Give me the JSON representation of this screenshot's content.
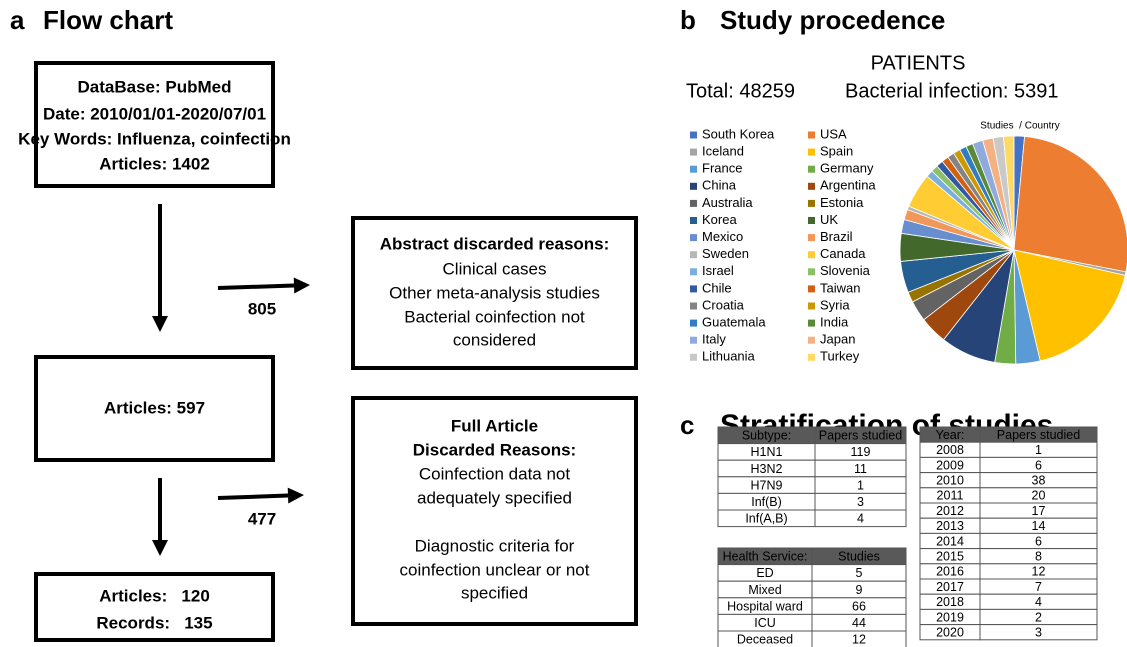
{
  "panels": [
    {
      "letter": "a",
      "title": "Flow chart"
    },
    {
      "letter": "b",
      "title": "Study procedence"
    },
    {
      "letter": "c",
      "title": "Stratification of studies"
    }
  ],
  "flow": {
    "boxes": [
      {
        "lines": [
          "DataBase: PubMed",
          "Date: 2010/01/01-2020/07/01",
          "Key Words: Influenza, coinfection",
          "Articles: 1402"
        ]
      },
      {
        "lines": [
          "Abstract discarded reasons:",
          "Clinical cases",
          "Other meta-analysis studies",
          "Bacterial coinfection not",
          "considered"
        ]
      },
      {
        "lines": [
          "Articles: 597"
        ]
      },
      {
        "lines": [
          "Full Article",
          "Discarded Reasons:",
          "Coinfection data not",
          "adequately specified",
          "Diagnostic criteria for",
          "coinfection unclear or not",
          "specified"
        ]
      },
      {
        "lines": [
          "Articles:   120",
          "Records:   135"
        ]
      }
    ],
    "excluded": [
      805,
      477
    ]
  },
  "patients": {
    "heading": "PATIENTS",
    "total": "Total: 48259",
    "bacterial": "Bacterial infection: 5391"
  },
  "pie": {
    "title": "Studies  / Country",
    "series": [
      {
        "name": "South Korea",
        "color": "#4472C4",
        "value": 1.5
      },
      {
        "name": "USA",
        "color": "#ED7D31",
        "value": 27
      },
      {
        "name": "Iceland",
        "color": "#A5A5A5",
        "value": 0.5
      },
      {
        "name": "Spain",
        "color": "#FFC000",
        "value": 18
      },
      {
        "name": "France",
        "color": "#5B9BD5",
        "value": 3.5
      },
      {
        "name": "Germany",
        "color": "#70AD47",
        "value": 3
      },
      {
        "name": "China",
        "color": "#264478",
        "value": 8
      },
      {
        "name": "Argentina",
        "color": "#9E480E",
        "value": 4
      },
      {
        "name": "Australia",
        "color": "#636363",
        "value": 3
      },
      {
        "name": "Estonia",
        "color": "#997300",
        "value": 1.5
      },
      {
        "name": "Korea",
        "color": "#255E91",
        "value": 4.5
      },
      {
        "name": "UK",
        "color": "#43682B",
        "value": 4
      },
      {
        "name": "Mexico",
        "color": "#698ED0",
        "value": 2
      },
      {
        "name": "Brazil",
        "color": "#F1975A",
        "value": 1.5
      },
      {
        "name": "Sweden",
        "color": "#B7B7B7",
        "value": 0.5
      },
      {
        "name": "Canada",
        "color": "#FFCD33",
        "value": 5
      },
      {
        "name": "Israel",
        "color": "#7CAFDD",
        "value": 1
      },
      {
        "name": "Slovenia",
        "color": "#8CC168",
        "value": 1
      },
      {
        "name": "Chile",
        "color": "#335AA1",
        "value": 1
      },
      {
        "name": "Taiwan",
        "color": "#D26012",
        "value": 1
      },
      {
        "name": "Croatia",
        "color": "#848484",
        "value": 1
      },
      {
        "name": "Syria",
        "color": "#CC9A00",
        "value": 1
      },
      {
        "name": "Guatemala",
        "color": "#327DC2",
        "value": 1
      },
      {
        "name": "India",
        "color": "#5A8A39",
        "value": 1
      },
      {
        "name": "Italy",
        "color": "#8FAADC",
        "value": 1.5
      },
      {
        "name": "Japan",
        "color": "#F4B183",
        "value": 1.5
      },
      {
        "name": "Lithuania",
        "color": "#C9C9C9",
        "value": 1.5
      },
      {
        "name": "Turkey",
        "color": "#FFD966",
        "value": 1.5
      }
    ]
  },
  "tables": [
    {
      "columns": [
        "Subtype:",
        "Papers studied"
      ],
      "rows": [
        [
          "H1N1",
          119
        ],
        [
          "H3N2",
          11
        ],
        [
          "H7N9",
          1
        ],
        [
          "Inf(B)",
          3
        ],
        [
          "Inf(A,B)",
          4
        ]
      ]
    },
    {
      "columns": [
        "Health Service:",
        "Studies"
      ],
      "rows": [
        [
          "ED",
          5
        ],
        [
          "Mixed",
          9
        ],
        [
          "Hospital ward",
          66
        ],
        [
          "ICU",
          44
        ],
        [
          "Deceased",
          12
        ]
      ]
    },
    {
      "columns": [
        "Year:",
        "Papers studied"
      ],
      "rows": [
        [
          2008,
          1
        ],
        [
          2009,
          6
        ],
        [
          2010,
          38
        ],
        [
          2011,
          20
        ],
        [
          2012,
          17
        ],
        [
          2013,
          14
        ],
        [
          2014,
          6
        ],
        [
          2015,
          8
        ],
        [
          2016,
          12
        ],
        [
          2017,
          7
        ],
        [
          2018,
          4
        ],
        [
          2019,
          2
        ],
        [
          2020,
          3
        ]
      ]
    }
  ]
}
